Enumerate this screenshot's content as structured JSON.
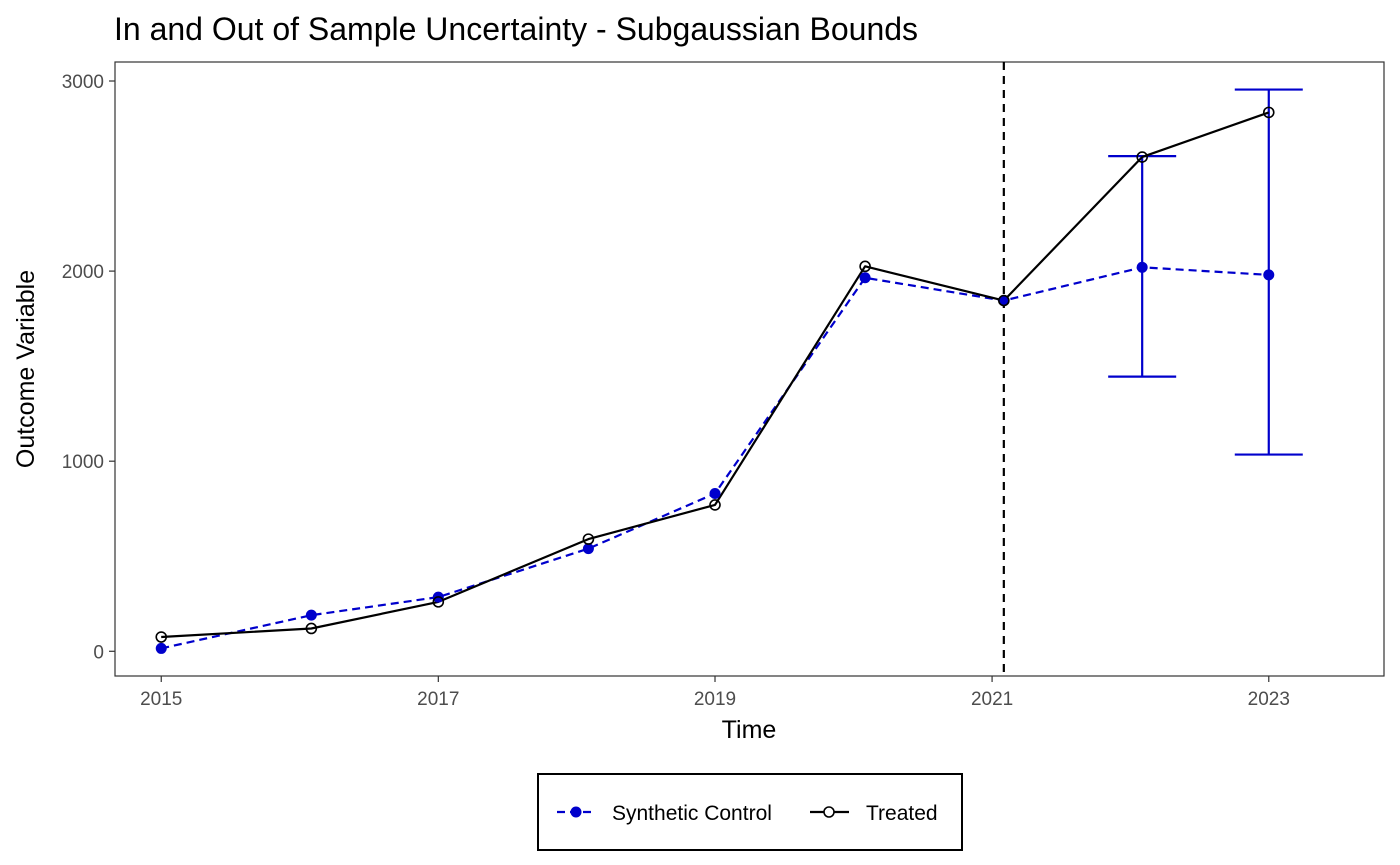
{
  "chart_data": {
    "type": "line",
    "title": "In and Out of Sample Uncertainty - Subgaussian Bounds",
    "xlabel": "Time",
    "ylabel": "Outcome Variable",
    "xlim": [
      "2014-09-01",
      "2023-11-01"
    ],
    "ylim": [
      -130,
      3100
    ],
    "x_ticks": [
      "2015",
      "2017",
      "2019",
      "2021",
      "2023"
    ],
    "x_tick_dates": [
      "2015-01-01",
      "2017-01-01",
      "2019-01-01",
      "2021-01-01",
      "2023-01-01"
    ],
    "y_ticks": [
      0,
      1000,
      2000,
      3000
    ],
    "grid": false,
    "legend_position": "bottom",
    "treatment_date": "2021-02-01",
    "series": [
      {
        "name": "Synthetic Control",
        "color": "#0000CC",
        "linestyle": "dashed",
        "marker": "filled-circle",
        "points": [
          {
            "x": "2015-01-01",
            "y": 15
          },
          {
            "x": "2016-02-01",
            "y": 190
          },
          {
            "x": "2017-01-01",
            "y": 285
          },
          {
            "x": "2018-02-01",
            "y": 540
          },
          {
            "x": "2019-01-01",
            "y": 830
          },
          {
            "x": "2020-02-01",
            "y": 1965
          },
          {
            "x": "2021-02-01",
            "y": 1845
          },
          {
            "x": "2022-02-01",
            "y": 2020
          },
          {
            "x": "2023-01-01",
            "y": 1980
          }
        ]
      },
      {
        "name": "Treated",
        "color": "#000000",
        "linestyle": "solid",
        "marker": "open-circle",
        "points": [
          {
            "x": "2015-01-01",
            "y": 75
          },
          {
            "x": "2016-02-01",
            "y": 120
          },
          {
            "x": "2017-01-01",
            "y": 260
          },
          {
            "x": "2018-02-01",
            "y": 590
          },
          {
            "x": "2019-01-01",
            "y": 770
          },
          {
            "x": "2020-02-01",
            "y": 2025
          },
          {
            "x": "2021-02-01",
            "y": 1845
          },
          {
            "x": "2022-02-01",
            "y": 2600
          },
          {
            "x": "2023-01-01",
            "y": 2835
          }
        ]
      }
    ],
    "error_bars": [
      {
        "x": "2022-02-01",
        "lower": 1445,
        "upper": 2605,
        "color": "#0000CC"
      },
      {
        "x": "2023-01-01",
        "lower": 1035,
        "upper": 2955,
        "color": "#0000CC"
      }
    ]
  }
}
